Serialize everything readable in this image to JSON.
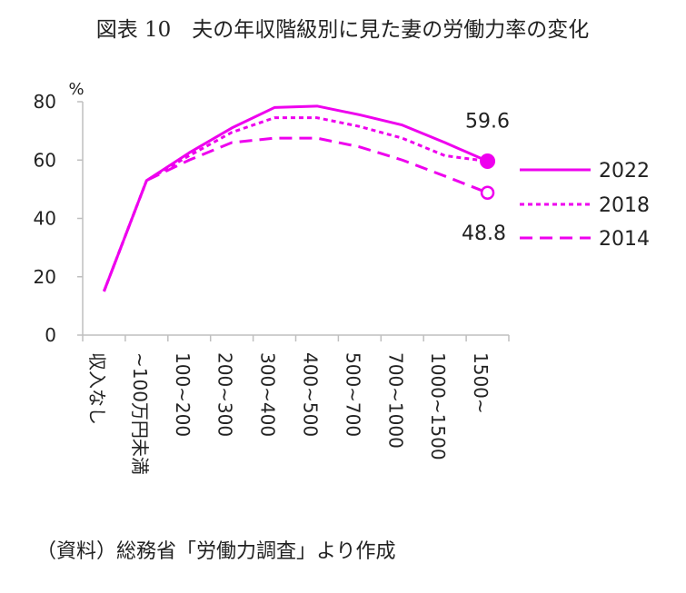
{
  "chart_data": {
    "type": "line",
    "title": "図表 10　夫の年収階級別に見た妻の労働力率の変化",
    "ylabel": "%",
    "ylim": [
      0,
      80
    ],
    "yticks": [
      0,
      20,
      40,
      60,
      80
    ],
    "grid": false,
    "categories": [
      "収入なし",
      "~100万円未満",
      "100~200",
      "200~300",
      "300~400",
      "400~500",
      "500~700",
      "700~1000",
      "1000~1500",
      "1500~"
    ],
    "series": [
      {
        "name": "2022",
        "style": "solid",
        "values": [
          15.0,
          53.0,
          62.5,
          71.0,
          78.0,
          78.5,
          75.5,
          72.0,
          66.0,
          59.6
        ]
      },
      {
        "name": "2018",
        "style": "dotted",
        "values": [
          15.0,
          53.0,
          61.5,
          69.5,
          74.5,
          74.5,
          71.5,
          67.5,
          61.5,
          59.6
        ]
      },
      {
        "name": "2014",
        "style": "dashed",
        "values": [
          15.0,
          53.0,
          60.0,
          66.0,
          67.5,
          67.5,
          64.5,
          60.0,
          54.5,
          48.8
        ]
      }
    ],
    "annotations": [
      {
        "series": "2022",
        "category": "1500~",
        "label": "59.6",
        "marker": "filled-circle"
      },
      {
        "series": "2014",
        "category": "1500~",
        "label": "48.8",
        "marker": "open-circle"
      }
    ],
    "legend_position": "right",
    "color": "#ee00ee"
  },
  "source": "（資料）総務省「労働力調査」より作成"
}
